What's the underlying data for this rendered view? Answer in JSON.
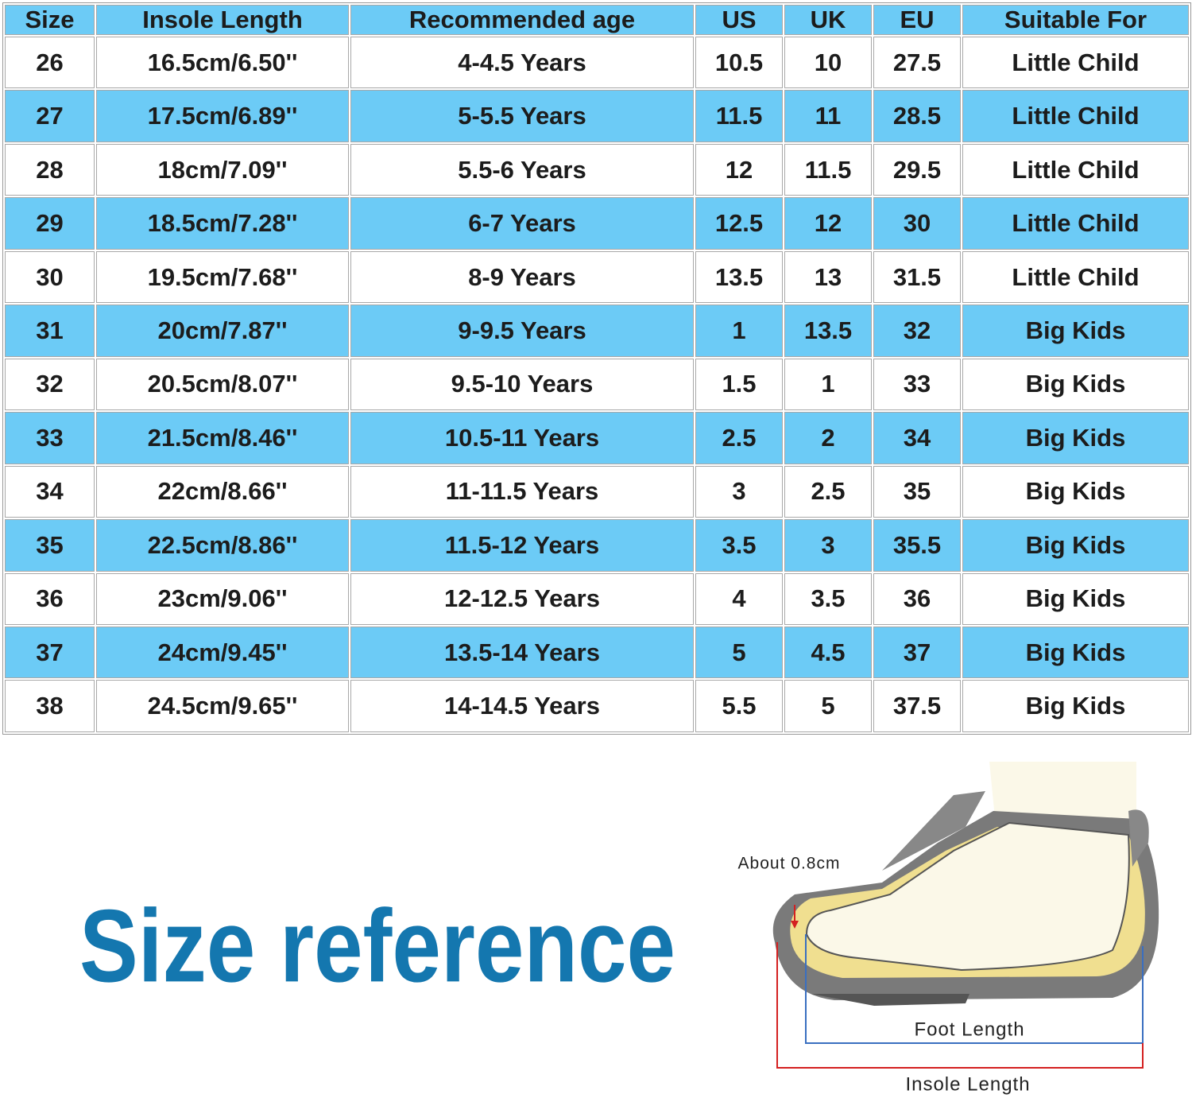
{
  "table": {
    "header": [
      "Size",
      "Insole Length",
      "Recommended age",
      "US",
      "UK",
      "EU",
      "Suitable For"
    ],
    "rows": [
      [
        "26",
        "16.5cm/6.50''",
        "4-4.5 Years",
        "10.5",
        "10",
        "27.5",
        "Little Child"
      ],
      [
        "27",
        "17.5cm/6.89''",
        "5-5.5 Years",
        "11.5",
        "11",
        "28.5",
        "Little Child"
      ],
      [
        "28",
        "18cm/7.09''",
        "5.5-6 Years",
        "12",
        "11.5",
        "29.5",
        "Little Child"
      ],
      [
        "29",
        "18.5cm/7.28''",
        "6-7 Years",
        "12.5",
        "12",
        "30",
        "Little Child"
      ],
      [
        "30",
        "19.5cm/7.68''",
        "8-9 Years",
        "13.5",
        "13",
        "31.5",
        "Little Child"
      ],
      [
        "31",
        "20cm/7.87''",
        "9-9.5 Years",
        "1",
        "13.5",
        "32",
        "Big Kids"
      ],
      [
        "32",
        "20.5cm/8.07''",
        "9.5-10 Years",
        "1.5",
        "1",
        "33",
        "Big Kids"
      ],
      [
        "33",
        "21.5cm/8.46''",
        "10.5-11 Years",
        "2.5",
        "2",
        "34",
        "Big Kids"
      ],
      [
        "34",
        "22cm/8.66''",
        "11-11.5 Years",
        "3",
        "2.5",
        "35",
        "Big Kids"
      ],
      [
        "35",
        "22.5cm/8.86''",
        "11.5-12 Years",
        "3.5",
        "3",
        "35.5",
        "Big Kids"
      ],
      [
        "36",
        "23cm/9.06''",
        "12-12.5 Years",
        "4",
        "3.5",
        "36",
        "Big Kids"
      ],
      [
        "37",
        "24cm/9.45''",
        "13.5-14 Years",
        "5",
        "4.5",
        "37",
        "Big Kids"
      ],
      [
        "38",
        "24.5cm/9.65''",
        "14-14.5 Years",
        "5.5",
        "5",
        "37.5",
        "Big Kids"
      ]
    ]
  },
  "banner": {
    "title": "Size reference"
  },
  "diagram": {
    "toe_gap": "About 0.8cm",
    "foot_length": "Foot Length",
    "insole_length": "Insole Length"
  }
}
